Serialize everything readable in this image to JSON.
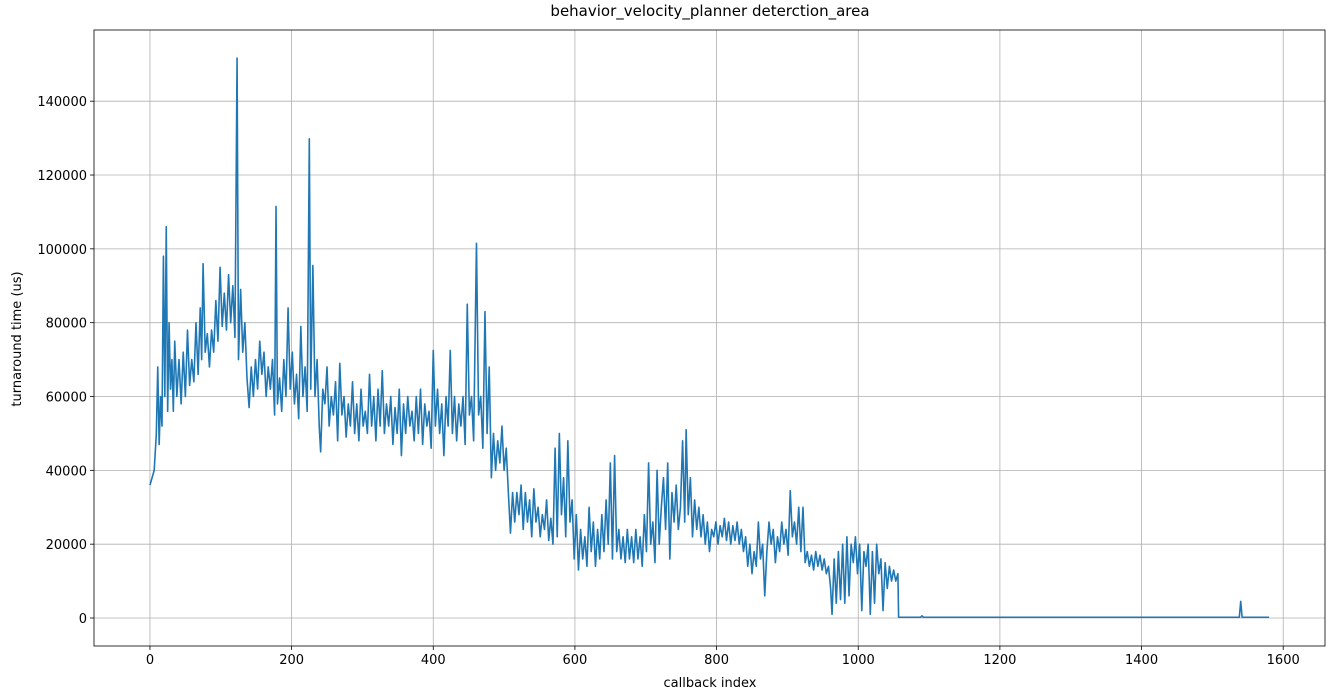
{
  "chart_data": {
    "type": "line",
    "title": "behavior_velocity_planner deterction_area",
    "x_label": "callback index",
    "y_label": "turnaround time (us)",
    "xlim": [
      -79,
      1659
    ],
    "ylim": [
      -7585,
      159285
    ],
    "xticks": [
      0,
      200,
      400,
      600,
      800,
      1000,
      1200,
      1400,
      1600
    ],
    "yticks": [
      0,
      20000,
      40000,
      60000,
      80000,
      100000,
      120000,
      140000
    ],
    "grid": true,
    "series": [
      {
        "color": "#1f77b4",
        "x": [
          0,
          3,
          6,
          9,
          11,
          13,
          15,
          17,
          19,
          21,
          23,
          25,
          27,
          29,
          31,
          33,
          35,
          38,
          41,
          44,
          47,
          50,
          53,
          56,
          59,
          62,
          65,
          68,
          71,
          73,
          75,
          78,
          81,
          84,
          87,
          90,
          93,
          96,
          99,
          102,
          105,
          108,
          111,
          114,
          117,
          120,
          123,
          125,
          128,
          131,
          134,
          137,
          140,
          143,
          146,
          149,
          152,
          155,
          158,
          161,
          164,
          167,
          170,
          173,
          176,
          178,
          180,
          183,
          186,
          189,
          192,
          195,
          198,
          201,
          204,
          207,
          210,
          213,
          216,
          219,
          222,
          225,
          227,
          230,
          233,
          236,
          239,
          241,
          244,
          247,
          250,
          253,
          256,
          259,
          262,
          265,
          268,
          271,
          274,
          277,
          280,
          283,
          286,
          289,
          292,
          295,
          298,
          301,
          304,
          307,
          310,
          313,
          316,
          319,
          322,
          325,
          328,
          331,
          334,
          337,
          340,
          343,
          346,
          349,
          352,
          355,
          358,
          361,
          364,
          367,
          370,
          373,
          376,
          379,
          382,
          385,
          388,
          391,
          394,
          397,
          400,
          403,
          406,
          409,
          412,
          415,
          418,
          421,
          424,
          427,
          430,
          433,
          436,
          439,
          442,
          445,
          448,
          451,
          454,
          457,
          461,
          464,
          467,
          470,
          473,
          476,
          479,
          482,
          485,
          488,
          491,
          494,
          497,
          500,
          503,
          506,
          509,
          512,
          515,
          518,
          521,
          524,
          527,
          530,
          533,
          536,
          539,
          542,
          545,
          548,
          551,
          554,
          557,
          560,
          563,
          566,
          569,
          572,
          575,
          578,
          581,
          584,
          587,
          590,
          593,
          596,
          599,
          602,
          605,
          608,
          611,
          614,
          617,
          620,
          623,
          626,
          629,
          632,
          635,
          638,
          641,
          644,
          647,
          650,
          653,
          656,
          659,
          662,
          665,
          668,
          671,
          674,
          677,
          680,
          683,
          686,
          689,
          692,
          695,
          698,
          701,
          704,
          707,
          710,
          713,
          716,
          719,
          722,
          725,
          728,
          731,
          734,
          737,
          740,
          743,
          746,
          749,
          752,
          755,
          757,
          760,
          763,
          766,
          769,
          772,
          775,
          778,
          781,
          784,
          787,
          790,
          793,
          796,
          799,
          802,
          805,
          808,
          811,
          814,
          817,
          820,
          823,
          826,
          829,
          832,
          835,
          838,
          841,
          844,
          847,
          850,
          853,
          856,
          859,
          862,
          865,
          868,
          871,
          874,
          877,
          880,
          883,
          886,
          889,
          892,
          895,
          898,
          901,
          904,
          907,
          910,
          913,
          916,
          919,
          922,
          925,
          928,
          931,
          934,
          937,
          940,
          943,
          946,
          949,
          952,
          955,
          958,
          961,
          963,
          966,
          969,
          972,
          975,
          978,
          981,
          984,
          987,
          990,
          993,
          996,
          999,
          1002,
          1005,
          1008,
          1011,
          1014,
          1017,
          1020,
          1023,
          1026,
          1029,
          1032,
          1035,
          1038,
          1041,
          1044,
          1047,
          1050,
          1053,
          1056,
          1057,
          1088,
          1090,
          1092,
          1538,
          1540,
          1542,
          1580
        ],
        "values": [
          36000,
          38000,
          40000,
          50000,
          68000,
          47000,
          60000,
          52000,
          98000,
          60000,
          106000,
          56000,
          80000,
          62000,
          70000,
          56000,
          75000,
          60000,
          70000,
          58000,
          72000,
          60000,
          78000,
          63000,
          70000,
          64000,
          80000,
          66000,
          84000,
          70000,
          96000,
          72000,
          77000,
          68000,
          78000,
          72000,
          86000,
          75000,
          95000,
          79000,
          88000,
          78000,
          93000,
          80000,
          90000,
          76000,
          151700,
          70000,
          89000,
          72000,
          80000,
          65000,
          57000,
          68000,
          60000,
          70000,
          62000,
          75000,
          66000,
          72000,
          60000,
          68000,
          62000,
          70000,
          55000,
          111500,
          58000,
          65000,
          56000,
          70000,
          60000,
          84000,
          62000,
          72000,
          58000,
          66000,
          54000,
          79000,
          60000,
          68000,
          56000,
          129800,
          62000,
          95500,
          60000,
          70000,
          52000,
          45000,
          62000,
          58000,
          68000,
          52000,
          60000,
          55000,
          64000,
          48000,
          69000,
          55000,
          60000,
          49000,
          58000,
          52000,
          64000,
          50000,
          58000,
          48000,
          62000,
          52000,
          56000,
          50000,
          66000,
          52000,
          60000,
          48000,
          62000,
          52000,
          67000,
          50000,
          58000,
          52000,
          60000,
          47000,
          57000,
          50000,
          62000,
          44000,
          58000,
          50000,
          60000,
          52000,
          56000,
          48000,
          60000,
          50000,
          62000,
          47000,
          58000,
          52000,
          56000,
          46000,
          72500,
          52000,
          62000,
          50000,
          58000,
          44000,
          60000,
          52000,
          72500,
          50000,
          60000,
          48000,
          58000,
          52000,
          60000,
          47000,
          85000,
          55000,
          60000,
          48000,
          101500,
          55000,
          60000,
          46000,
          83000,
          50000,
          68000,
          38000,
          50000,
          40000,
          48000,
          42000,
          52000,
          40000,
          46000,
          34000,
          23000,
          34000,
          26000,
          34000,
          28000,
          36000,
          24000,
          34000,
          26000,
          32000,
          22000,
          35000,
          26000,
          30000,
          22000,
          28000,
          24000,
          32000,
          21000,
          27000,
          20000,
          46000,
          22000,
          50000,
          28000,
          38000,
          22000,
          48000,
          26000,
          32000,
          16000,
          28000,
          13000,
          24000,
          16000,
          22000,
          14000,
          30000,
          18000,
          26000,
          14000,
          24000,
          16000,
          28000,
          18000,
          32000,
          20000,
          42000,
          16000,
          44000,
          18000,
          24000,
          16000,
          22000,
          15000,
          24000,
          16000,
          22000,
          15000,
          24000,
          16000,
          22000,
          14000,
          28000,
          18000,
          42000,
          20000,
          26000,
          15000,
          40000,
          20000,
          30000,
          38000,
          24000,
          42000,
          16000,
          34000,
          26000,
          36000,
          24000,
          30000,
          48000,
          26000,
          51000,
          28000,
          38000,
          22000,
          32000,
          24000,
          30000,
          22000,
          28000,
          20000,
          26000,
          18000,
          24000,
          22000,
          26000,
          20000,
          25000,
          22000,
          27000,
          21000,
          26000,
          20000,
          25000,
          21000,
          26000,
          20000,
          24000,
          18000,
          22000,
          14000,
          20000,
          12000,
          18000,
          14000,
          26000,
          16000,
          20000,
          6000,
          18000,
          26000,
          20000,
          24000,
          15000,
          22000,
          18000,
          26000,
          20000,
          24000,
          17000,
          34500,
          22000,
          26000,
          20000,
          30000,
          18000,
          30000,
          15000,
          18000,
          14000,
          17000,
          13000,
          18000,
          14000,
          17000,
          13000,
          16000,
          12000,
          14000,
          8000,
          1000,
          16000,
          4000,
          18000,
          5000,
          20000,
          4000,
          22000,
          6000,
          20000,
          15000,
          22000,
          12000,
          20000,
          2000,
          18000,
          14000,
          20000,
          1000,
          18000,
          4000,
          20000,
          12000,
          16000,
          2000,
          15000,
          8000,
          14000,
          10000,
          13000,
          10000,
          12000,
          200,
          200,
          600,
          200,
          200,
          4500,
          200,
          200
        ]
      }
    ]
  }
}
